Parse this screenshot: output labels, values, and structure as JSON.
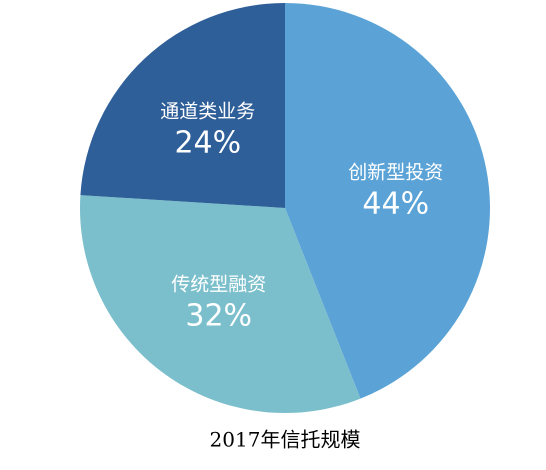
{
  "chart_data": {
    "type": "pie",
    "title": "2017年信托规模",
    "categories": [
      "创新型投资",
      "传统型融资",
      "通道类业务"
    ],
    "values": [
      44,
      32,
      24
    ],
    "value_labels": [
      "44%",
      "32%",
      "24%"
    ],
    "colors": [
      "#5ba3d6",
      "#7bbfcc",
      "#2f5f99"
    ]
  }
}
